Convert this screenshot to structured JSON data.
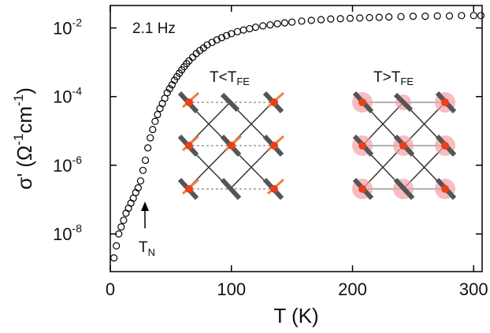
{
  "chart_data": {
    "type": "scatter",
    "x_label": "T (K)",
    "y_label_parts": [
      {
        "text": "σ' (Ω"
      },
      {
        "sup": "-1"
      },
      {
        "text": "cm"
      },
      {
        "sup": "-1"
      },
      {
        "text": ")"
      }
    ],
    "annotations": {
      "frequency": "2.1 Hz",
      "low_t": {
        "text": "T<T",
        "sub": "FE"
      },
      "high_t": {
        "text": "T>T",
        "sub": "FE"
      },
      "tn": {
        "text": "T",
        "sub": "N"
      }
    },
    "log_y": true,
    "color": "#000000",
    "xlim": [
      0,
      307
    ],
    "xticks": [
      0,
      100,
      200,
      300
    ],
    "ylim": [
      8e-10,
      0.045
    ],
    "yticks": [
      {
        "value": 1e-08,
        "label": "10",
        "exponent": "-8"
      },
      {
        "value": 1e-06,
        "label": "10",
        "exponent": "-6"
      },
      {
        "value": 0.0001,
        "label": "10",
        "exponent": "-4"
      },
      {
        "value": 0.01,
        "label": "10",
        "exponent": "-2"
      }
    ],
    "x": [
      3,
      5,
      7,
      9,
      11,
      13,
      15,
      17,
      19,
      21,
      23,
      25,
      27,
      29,
      31,
      33,
      35,
      37,
      39,
      41,
      43,
      45,
      47,
      49,
      51,
      53,
      55,
      57,
      59,
      61,
      63,
      65,
      68,
      71,
      74,
      77,
      80,
      84,
      88,
      92,
      96,
      100,
      105,
      110,
      115,
      120,
      126,
      132,
      138,
      144,
      150,
      158,
      166,
      174,
      182,
      190,
      198,
      206,
      214,
      222,
      230,
      240,
      250,
      260,
      270,
      280,
      290,
      300,
      306
    ],
    "values": [
      2e-09,
      4.5e-09,
      1e-08,
      1.6e-08,
      2.5e-08,
      4e-08,
      5.6e-08,
      7.9e-08,
      1.1e-07,
      1.6e-07,
      2.2e-07,
      3.5e-07,
      7.1e-07,
      1.4e-06,
      3.2e-06,
      6.3e-06,
      1.1e-05,
      1.9e-05,
      3e-05,
      4.5e-05,
      6.3e-05,
      8.9e-05,
      0.00013,
      0.00017,
      0.00022,
      0.0003,
      0.00038,
      0.00048,
      0.0006,
      0.00074,
      0.00091,
      0.0011,
      0.0014,
      0.0018,
      0.0022,
      0.0026,
      0.0032,
      0.0038,
      0.0045,
      0.0052,
      0.006,
      0.0068,
      0.0078,
      0.0087,
      0.0095,
      0.0105,
      0.0115,
      0.0123,
      0.0132,
      0.0141,
      0.0148,
      0.0158,
      0.0166,
      0.0174,
      0.0182,
      0.0186,
      0.0191,
      0.0195,
      0.02,
      0.0204,
      0.0209,
      0.0214,
      0.0219,
      0.0219,
      0.0224,
      0.0224,
      0.0229,
      0.0229,
      0.0229
    ]
  }
}
